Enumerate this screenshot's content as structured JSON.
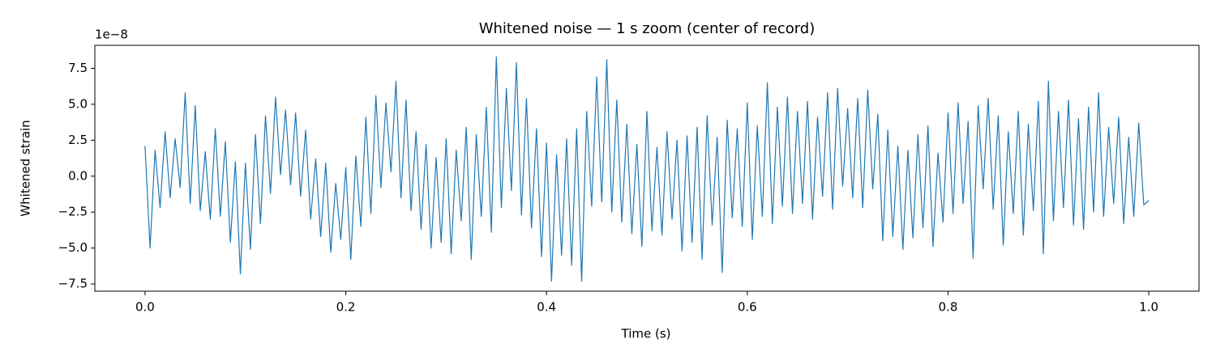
{
  "chart_data": {
    "type": "line",
    "title": "Whitened noise — 1 s zoom (center of record)",
    "xlabel": "Time (s)",
    "ylabel": "Whitened strain",
    "y_offset_text": "1e−8",
    "xlim": [
      -0.05,
      1.05
    ],
    "ylim": [
      -8.0,
      9.1
    ],
    "xticks": [
      {
        "value": 0,
        "label": "0.0"
      },
      0.2,
      0.4,
      0.6,
      0.8,
      {
        "value": 1,
        "label": "1.0"
      }
    ],
    "yticks": [
      {
        "value": -7.5,
        "label": "−7.5"
      },
      {
        "value": -5,
        "label": "−5.0"
      },
      {
        "value": -2.5,
        "label": "−2.5"
      },
      {
        "value": 0,
        "label": "0.0"
      },
      2.5,
      {
        "value": 5,
        "label": "5.0"
      },
      7.5
    ],
    "x": [
      0,
      0.005,
      0.01,
      0.015,
      0.02,
      0.025,
      0.03,
      0.035,
      0.04,
      0.045,
      0.05,
      0.055,
      0.06,
      0.065,
      0.07,
      0.075,
      0.08,
      0.085,
      0.09,
      0.095,
      0.1,
      0.105,
      0.11,
      0.115,
      0.12,
      0.125,
      0.13,
      0.135,
      0.14,
      0.145,
      0.15,
      0.155,
      0.16,
      0.165,
      0.17,
      0.175,
      0.18,
      0.185,
      0.19,
      0.195,
      0.2,
      0.205,
      0.21,
      0.215,
      0.22,
      0.225,
      0.23,
      0.235,
      0.24,
      0.245,
      0.25,
      0.255,
      0.26,
      0.265,
      0.27,
      0.275,
      0.28,
      0.285,
      0.29,
      0.295,
      0.3,
      0.305,
      0.31,
      0.315,
      0.32,
      0.325,
      0.33,
      0.335,
      0.34,
      0.345,
      0.35,
      0.355,
      0.36,
      0.365,
      0.37,
      0.375,
      0.38,
      0.385,
      0.39,
      0.395,
      0.4,
      0.405,
      0.41,
      0.415,
      0.42,
      0.425,
      0.43,
      0.435,
      0.44,
      0.445,
      0.45,
      0.455,
      0.46,
      0.465,
      0.47,
      0.475,
      0.48,
      0.485,
      0.49,
      0.495,
      0.5,
      0.505,
      0.51,
      0.515,
      0.52,
      0.525,
      0.53,
      0.535,
      0.54,
      0.545,
      0.55,
      0.555,
      0.56,
      0.565,
      0.57,
      0.575,
      0.58,
      0.585,
      0.59,
      0.595,
      0.6,
      0.605,
      0.61,
      0.615,
      0.62,
      0.625,
      0.63,
      0.635,
      0.64,
      0.645,
      0.65,
      0.655,
      0.66,
      0.665,
      0.67,
      0.675,
      0.68,
      0.685,
      0.69,
      0.695,
      0.7,
      0.705,
      0.71,
      0.715,
      0.72,
      0.725,
      0.73,
      0.735,
      0.74,
      0.745,
      0.75,
      0.755,
      0.76,
      0.765,
      0.77,
      0.775,
      0.78,
      0.785,
      0.79,
      0.795,
      0.8,
      0.805,
      0.81,
      0.815,
      0.82,
      0.825,
      0.83,
      0.835,
      0.84,
      0.845,
      0.85,
      0.855,
      0.86,
      0.865,
      0.87,
      0.875,
      0.88,
      0.885,
      0.89,
      0.895,
      0.9,
      0.905,
      0.91,
      0.915,
      0.92,
      0.925,
      0.93,
      0.935,
      0.94,
      0.945,
      0.95,
      0.955,
      0.96,
      0.965,
      0.97,
      0.975,
      0.98,
      0.985,
      0.99,
      0.995,
      1
    ],
    "series": [
      {
        "color": "#1f77b4",
        "values": [
          2.1,
          -5.0,
          1.8,
          -2.2,
          3.1,
          -1.5,
          2.6,
          -0.8,
          5.8,
          -1.9,
          4.9,
          -2.4,
          1.7,
          -3.0,
          3.3,
          -2.8,
          2.4,
          -4.6,
          1.0,
          -6.8,
          0.9,
          -5.1,
          2.9,
          -3.3,
          4.2,
          -1.2,
          5.5,
          0.1,
          4.6,
          -0.6,
          4.4,
          -1.4,
          3.2,
          -3.0,
          1.2,
          -4.2,
          0.9,
          -5.3,
          -0.5,
          -4.4,
          0.6,
          -5.8,
          1.4,
          -3.5,
          4.1,
          -2.6,
          5.6,
          -0.8,
          5.1,
          0.3,
          6.6,
          -1.5,
          5.3,
          -2.4,
          3.1,
          -3.7,
          2.2,
          -5.0,
          1.3,
          -4.6,
          2.6,
          -5.4,
          1.8,
          -3.1,
          3.4,
          -5.8,
          2.9,
          -2.8,
          4.8,
          -3.9,
          8.3,
          -2.2,
          6.1,
          -1.0,
          7.9,
          -2.7,
          5.4,
          -3.6,
          3.3,
          -5.6,
          2.3,
          -7.3,
          1.5,
          -5.5,
          2.6,
          -6.2,
          3.3,
          -7.3,
          4.5,
          -2.1,
          6.9,
          -1.8,
          8.1,
          -2.5,
          5.3,
          -3.2,
          3.6,
          -4.0,
          2.2,
          -4.9,
          4.5,
          -3.8,
          2.0,
          -4.1,
          3.1,
          -3.0,
          2.5,
          -5.2,
          2.8,
          -4.6,
          3.4,
          -5.8,
          4.2,
          -3.4,
          2.7,
          -6.7,
          3.9,
          -2.9,
          3.3,
          -3.5,
          5.1,
          -4.4,
          3.5,
          -2.8,
          6.5,
          -3.3,
          4.8,
          -2.1,
          5.5,
          -2.6,
          4.5,
          -1.9,
          5.2,
          -3.0,
          4.1,
          -1.4,
          5.8,
          -2.3,
          6.1,
          -0.7,
          4.7,
          -1.5,
          5.4,
          -2.2,
          6.0,
          -0.9,
          4.3,
          -4.5,
          3.2,
          -4.2,
          2.1,
          -5.1,
          1.8,
          -4.3,
          2.9,
          -3.6,
          3.5,
          -4.9,
          1.6,
          -3.2,
          4.4,
          -2.6,
          5.1,
          -1.9,
          3.8,
          -5.7,
          4.9,
          -0.9,
          5.4,
          -2.3,
          4.2,
          -4.8,
          3.1,
          -2.6,
          4.5,
          -4.1,
          3.6,
          -2.4,
          5.2,
          -5.4,
          6.6,
          -3.1,
          4.5,
          -2.2,
          5.3,
          -3.4,
          4.0,
          -3.7,
          4.8,
          -2.5,
          5.8,
          -2.8,
          3.4,
          -1.9,
          4.1,
          -3.3,
          2.7,
          -2.8,
          3.7,
          -2.0,
          -1.7
        ]
      }
    ]
  }
}
